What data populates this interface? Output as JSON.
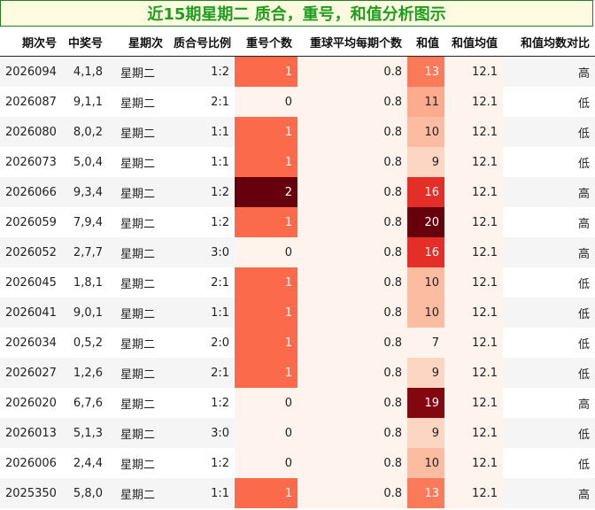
{
  "title": "近15期星期二 质合，重号，和值分析图示",
  "columns": [
    "期次号",
    "中奖号",
    "星期次",
    "质合号比例",
    "重号个数",
    "重球平均每期个数",
    "和值",
    "和值均值",
    "和值均数对比"
  ],
  "rows": [
    {
      "issue": "2026094",
      "numbers": "4,1,8",
      "weekday": "星期二",
      "ratio": "1:2",
      "repeat": "1",
      "avg_repeat": "0.8",
      "sum": "13",
      "sum_avg": "12.1",
      "compare": "高"
    },
    {
      "issue": "2026087",
      "numbers": "9,1,1",
      "weekday": "星期二",
      "ratio": "2:1",
      "repeat": "0",
      "avg_repeat": "0.8",
      "sum": "11",
      "sum_avg": "12.1",
      "compare": "低"
    },
    {
      "issue": "2026080",
      "numbers": "8,0,2",
      "weekday": "星期二",
      "ratio": "1:1",
      "repeat": "1",
      "avg_repeat": "0.8",
      "sum": "10",
      "sum_avg": "12.1",
      "compare": "低"
    },
    {
      "issue": "2026073",
      "numbers": "5,0,4",
      "weekday": "星期二",
      "ratio": "1:1",
      "repeat": "1",
      "avg_repeat": "0.8",
      "sum": "9",
      "sum_avg": "12.1",
      "compare": "低"
    },
    {
      "issue": "2026066",
      "numbers": "9,3,4",
      "weekday": "星期二",
      "ratio": "1:2",
      "repeat": "2",
      "avg_repeat": "0.8",
      "sum": "16",
      "sum_avg": "12.1",
      "compare": "高"
    },
    {
      "issue": "2026059",
      "numbers": "7,9,4",
      "weekday": "星期二",
      "ratio": "1:2",
      "repeat": "1",
      "avg_repeat": "0.8",
      "sum": "20",
      "sum_avg": "12.1",
      "compare": "高"
    },
    {
      "issue": "2026052",
      "numbers": "2,7,7",
      "weekday": "星期二",
      "ratio": "3:0",
      "repeat": "0",
      "avg_repeat": "0.8",
      "sum": "16",
      "sum_avg": "12.1",
      "compare": "高"
    },
    {
      "issue": "2026045",
      "numbers": "1,8,1",
      "weekday": "星期二",
      "ratio": "2:1",
      "repeat": "1",
      "avg_repeat": "0.8",
      "sum": "10",
      "sum_avg": "12.1",
      "compare": "低"
    },
    {
      "issue": "2026041",
      "numbers": "9,0,1",
      "weekday": "星期二",
      "ratio": "1:1",
      "repeat": "1",
      "avg_repeat": "0.8",
      "sum": "10",
      "sum_avg": "12.1",
      "compare": "低"
    },
    {
      "issue": "2026034",
      "numbers": "0,5,2",
      "weekday": "星期二",
      "ratio": "2:0",
      "repeat": "1",
      "avg_repeat": "0.8",
      "sum": "7",
      "sum_avg": "12.1",
      "compare": "低"
    },
    {
      "issue": "2026027",
      "numbers": "1,2,6",
      "weekday": "星期二",
      "ratio": "2:1",
      "repeat": "1",
      "avg_repeat": "0.8",
      "sum": "9",
      "sum_avg": "12.1",
      "compare": "低"
    },
    {
      "issue": "2026020",
      "numbers": "6,7,6",
      "weekday": "星期二",
      "ratio": "1:2",
      "repeat": "0",
      "avg_repeat": "0.8",
      "sum": "19",
      "sum_avg": "12.1",
      "compare": "高"
    },
    {
      "issue": "2026013",
      "numbers": "5,1,3",
      "weekday": "星期二",
      "ratio": "3:0",
      "repeat": "0",
      "avg_repeat": "0.8",
      "sum": "9",
      "sum_avg": "12.1",
      "compare": "低"
    },
    {
      "issue": "2026006",
      "numbers": "2,4,4",
      "weekday": "星期二",
      "ratio": "1:2",
      "repeat": "0",
      "avg_repeat": "0.8",
      "sum": "10",
      "sum_avg": "12.1",
      "compare": "低"
    },
    {
      "issue": "2025350",
      "numbers": "5,8,0",
      "weekday": "星期二",
      "ratio": "1:1",
      "repeat": "1",
      "avg_repeat": "0.8",
      "sum": "13",
      "sum_avg": "12.1",
      "compare": "高"
    }
  ],
  "colors": {
    "title_text": "#1f9d1f",
    "title_border": "#2a7a2a",
    "title_bg": "#fffbe0",
    "avg_repeat_bg": "#fff3ee",
    "sum_avg_bg": "#fff3ee",
    "repeat_scale": {
      "0": "#fff3ee",
      "1": "#fb6b4b",
      "2": "#67000d"
    },
    "sum_scale": {
      "7": "#fff3ee",
      "9": "#fdd5c3",
      "10": "#fcbca2",
      "11": "#fcab8f",
      "13": "#fb7a5a",
      "16": "#e32f27",
      "19": "#820711",
      "20": "#67000d"
    }
  }
}
